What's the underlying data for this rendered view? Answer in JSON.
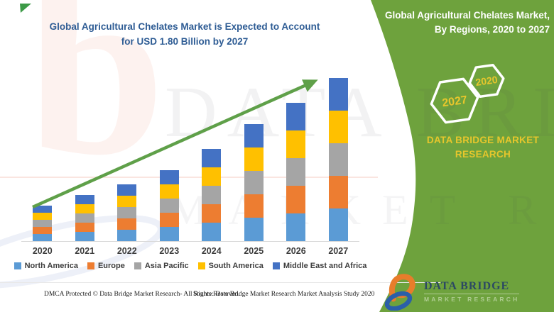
{
  "header": {
    "title_line1": "Global Agricultural Chelates Market is Expected to Account",
    "title_line2": "for USD 1.80 Billion by 2027"
  },
  "side_panel": {
    "title_line1": "Global Agricultural Chelates Market,",
    "title_line2": "By Regions, 2020 to 2027",
    "hexagon_back_label": "2027",
    "hexagon_front_label": "2020",
    "brand_line1": "DATA BRIDGE MARKET",
    "brand_line2": "RESEARCH",
    "panel_color": "#6EA23D",
    "accent_yellow": "#E7C62C"
  },
  "chart_data": {
    "type": "bar",
    "stacked": true,
    "categories": [
      "2020",
      "2021",
      "2022",
      "2023",
      "2024",
      "2025",
      "2026",
      "2027"
    ],
    "totals_usd_billion": [
      0.38,
      0.51,
      0.64,
      0.77,
      1.03,
      1.29,
      1.55,
      1.8
    ],
    "series": [
      {
        "name": "North America",
        "color": "#5B9BD5",
        "values": [
          0.076,
          0.102,
          0.128,
          0.154,
          0.206,
          0.258,
          0.31,
          0.36
        ]
      },
      {
        "name": "Europe",
        "color": "#ED7D31",
        "values": [
          0.076,
          0.102,
          0.128,
          0.154,
          0.206,
          0.258,
          0.31,
          0.36
        ]
      },
      {
        "name": "Asia Pacific",
        "color": "#A5A5A5",
        "values": [
          0.076,
          0.102,
          0.128,
          0.154,
          0.206,
          0.258,
          0.31,
          0.36
        ]
      },
      {
        "name": "South America",
        "color": "#FFC000",
        "values": [
          0.076,
          0.102,
          0.128,
          0.154,
          0.206,
          0.258,
          0.31,
          0.36
        ]
      },
      {
        "name": "Middle East and Africa",
        "color": "#4472C4",
        "values": [
          0.076,
          0.102,
          0.128,
          0.154,
          0.206,
          0.258,
          0.31,
          0.36
        ]
      }
    ],
    "unit": "USD Billion",
    "ylim": [
      0,
      1.9
    ],
    "gridlines": false,
    "legend_position": "bottom",
    "trend_arrow": {
      "present": true,
      "color": "#5FA049",
      "direction": "up-right"
    }
  },
  "watermark": {
    "monogram": "b",
    "brand_word": "DATA BRIDGE",
    "brand_word2": "MARKET RESEARCH"
  },
  "footer": {
    "left": "DMCA Protected © Data Bridge Market Research- All Rights Reserved.",
    "source": "Source: Data Bridge Market Research Market Analysis Study 2020"
  },
  "logo": {
    "name": "DATA BRIDGE",
    "subtitle": "MARKET RESEARCH"
  }
}
